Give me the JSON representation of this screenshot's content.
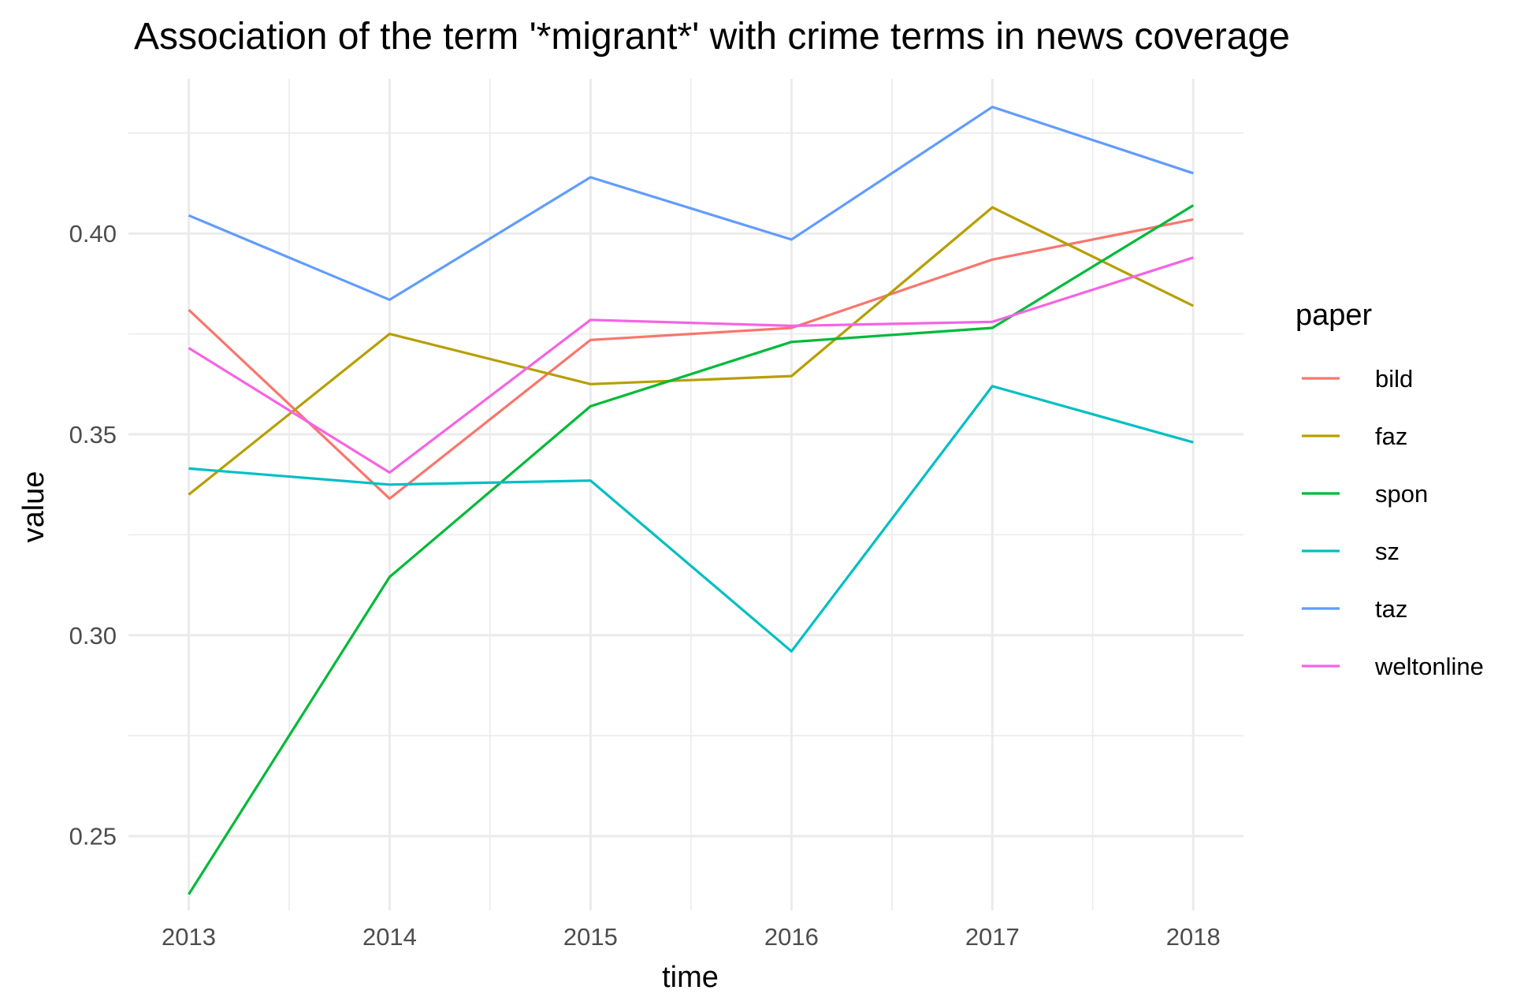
{
  "chart_data": {
    "type": "line",
    "title": "Association of the term '*migrant*' with crime terms in news coverage",
    "xlabel": "time",
    "ylabel": "value",
    "x": [
      2013,
      2014,
      2015,
      2016,
      2017,
      2018
    ],
    "x_tick_labels": [
      "2013",
      "2014",
      "2015",
      "2016",
      "2017",
      "2018"
    ],
    "y_ticks": [
      0.25,
      0.3,
      0.35,
      0.4
    ],
    "y_tick_labels": [
      "0.25",
      "0.30",
      "0.35",
      "0.40"
    ],
    "xlim": [
      2012.7,
      2018.25
    ],
    "ylim": [
      0.2315,
      0.4385
    ],
    "grid": true,
    "legend": {
      "title": "paper",
      "position": "right"
    },
    "series": [
      {
        "name": "bild",
        "color": "#F8766D",
        "values": [
          0.381,
          0.334,
          0.3735,
          0.3765,
          0.3935,
          0.4035
        ]
      },
      {
        "name": "faz",
        "color": "#B79F00",
        "values": [
          0.335,
          0.375,
          0.3625,
          0.3645,
          0.4065,
          0.382
        ]
      },
      {
        "name": "spon",
        "color": "#00BA38",
        "values": [
          0.2355,
          0.3145,
          0.357,
          0.373,
          0.3765,
          0.407
        ]
      },
      {
        "name": "sz",
        "color": "#00BFC4",
        "values": [
          0.3415,
          0.3375,
          0.3385,
          0.296,
          0.362,
          0.348
        ]
      },
      {
        "name": "taz",
        "color": "#619CFF",
        "values": [
          0.4045,
          0.3835,
          0.414,
          0.3985,
          0.4315,
          0.415
        ]
      },
      {
        "name": "weltonline",
        "color": "#F564E3",
        "values": [
          0.3715,
          0.3405,
          0.3785,
          0.377,
          0.378,
          0.394
        ]
      }
    ]
  }
}
